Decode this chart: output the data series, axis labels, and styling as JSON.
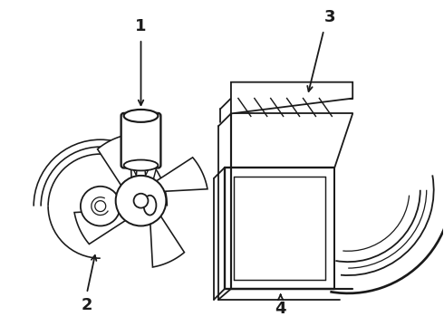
{
  "background_color": "#ffffff",
  "line_color": "#1a1a1a",
  "line_width": 1.3,
  "label_fontsize": 13,
  "label_fontweight": "bold",
  "fig_w": 4.9,
  "fig_h": 3.6,
  "dpi": 100
}
